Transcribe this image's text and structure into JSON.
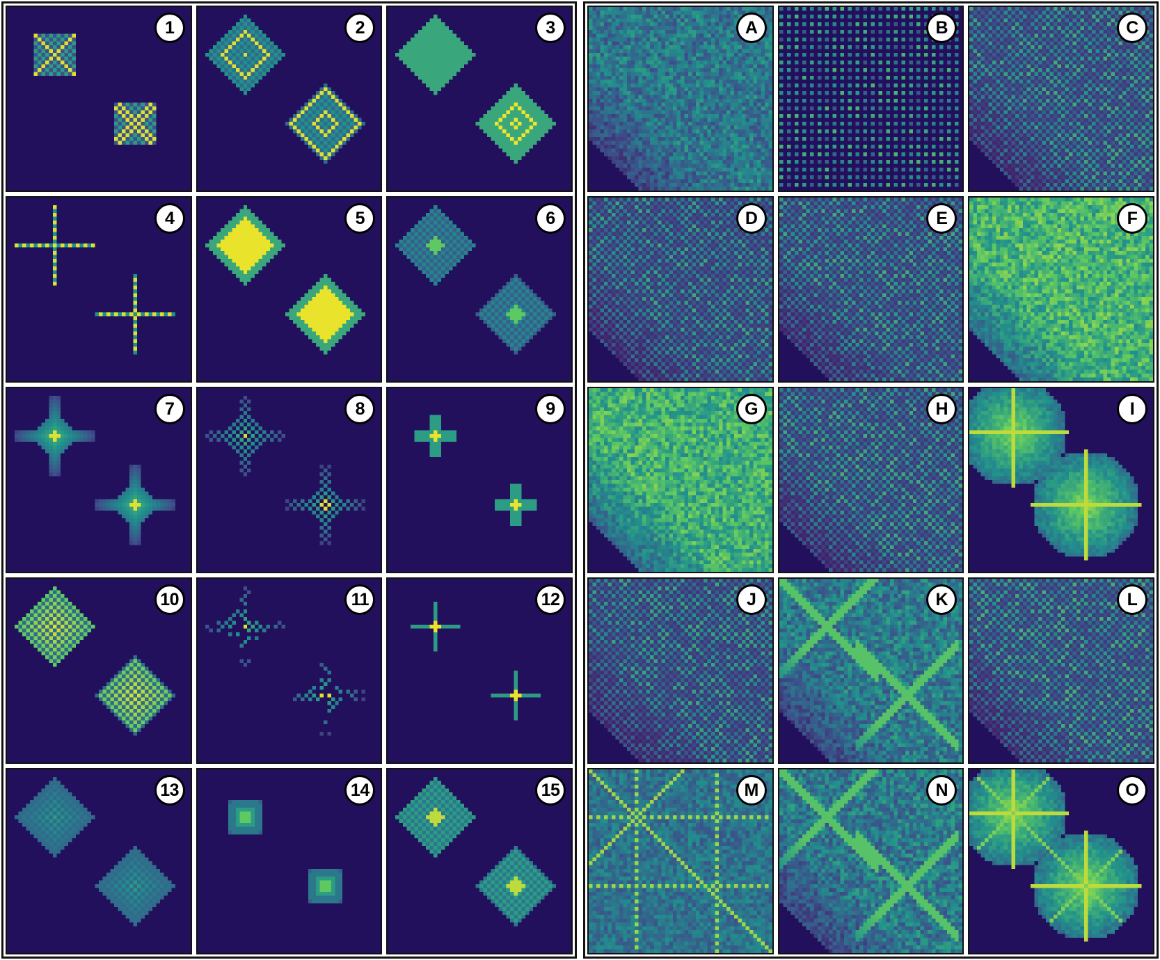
{
  "colormap": [
    "#440154",
    "#3b528b",
    "#21918c",
    "#5ec962",
    "#fde725"
  ],
  "background_color": "#23105d",
  "groups": [
    {
      "name": "numbered",
      "panels": [
        {
          "label": "1",
          "kind": "square-x",
          "fill": 0.7
        },
        {
          "label": "2",
          "kind": "diamond-rings",
          "fill": 0.8
        },
        {
          "label": "3",
          "kind": "diamond-solid",
          "fill": 0.75
        },
        {
          "label": "4",
          "kind": "plus-dots",
          "fill": 0.9
        },
        {
          "label": "5",
          "kind": "diamond-bright",
          "fill": 0.95
        },
        {
          "label": "6",
          "kind": "diamond-center",
          "fill": 0.6
        },
        {
          "label": "7",
          "kind": "star",
          "fill": 0.7
        },
        {
          "label": "8",
          "kind": "star-sparse",
          "fill": 0.55
        },
        {
          "label": "9",
          "kind": "small-cross",
          "fill": 0.85
        },
        {
          "label": "10",
          "kind": "diamond-checker",
          "fill": 0.95
        },
        {
          "label": "11",
          "kind": "star-dots",
          "fill": 0.5
        },
        {
          "label": "12",
          "kind": "thin-cross",
          "fill": 0.8
        },
        {
          "label": "13",
          "kind": "diamond-checker-dim",
          "fill": 0.55
        },
        {
          "label": "14",
          "kind": "square-ring",
          "fill": 0.65
        },
        {
          "label": "15",
          "kind": "diamond-glow",
          "fill": 0.75
        }
      ]
    },
    {
      "name": "lettered",
      "panels": [
        {
          "label": "A",
          "kind": "noise-cross",
          "fill": 0.55
        },
        {
          "label": "B",
          "kind": "dot-grid",
          "fill": 0.6
        },
        {
          "label": "C",
          "kind": "checker-fade",
          "fill": 0.5
        },
        {
          "label": "D",
          "kind": "checker-blobs",
          "fill": 0.45
        },
        {
          "label": "E",
          "kind": "checker-v",
          "fill": 0.5
        },
        {
          "label": "F",
          "kind": "bright-field",
          "fill": 0.75
        },
        {
          "label": "G",
          "kind": "noise-bright",
          "fill": 0.7
        },
        {
          "label": "H",
          "kind": "checker-holes",
          "fill": 0.5
        },
        {
          "label": "I",
          "kind": "double-glow",
          "fill": 0.7
        },
        {
          "label": "J",
          "kind": "checker-fine",
          "fill": 0.45
        },
        {
          "label": "K",
          "kind": "lattice-x",
          "fill": 0.6
        },
        {
          "label": "L",
          "kind": "checker-blocks",
          "fill": 0.55
        },
        {
          "label": "M",
          "kind": "rays",
          "fill": 0.5
        },
        {
          "label": "N",
          "kind": "noise-x",
          "fill": 0.6
        },
        {
          "label": "O",
          "kind": "double-star",
          "fill": 0.7
        }
      ]
    }
  ]
}
